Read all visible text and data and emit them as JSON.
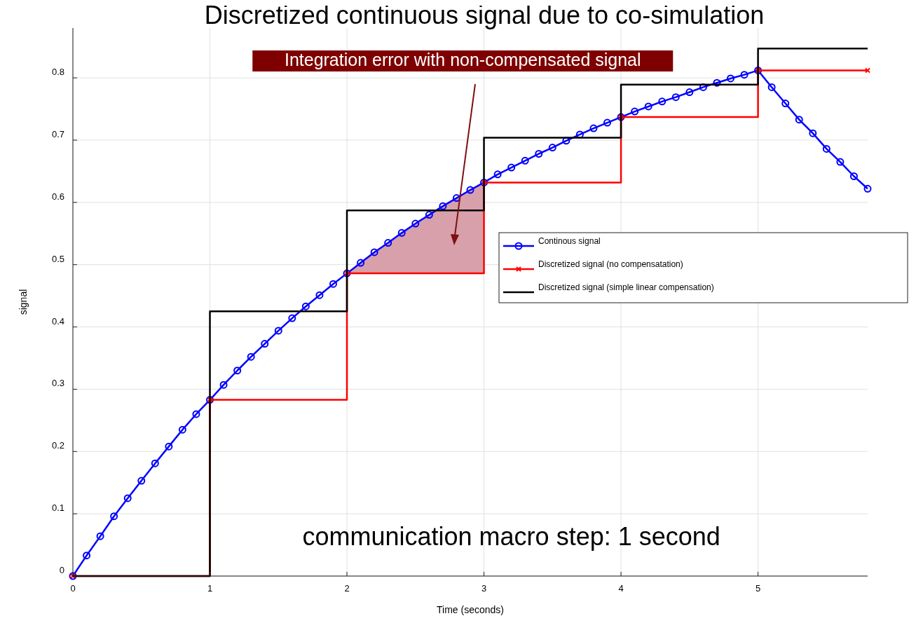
{
  "chart_data": {
    "type": "line",
    "title": "Discretized continuous signal due to co-simulation",
    "xlabel": "Time (seconds)",
    "ylabel": "signal",
    "xlim": [
      0,
      5.8
    ],
    "ylim": [
      0,
      0.88
    ],
    "xticks": [
      0,
      1,
      2,
      3,
      4,
      5
    ],
    "yticks": [
      0,
      0.1,
      0.2,
      0.3,
      0.4,
      0.5,
      0.6,
      0.7,
      0.8
    ],
    "grid": true,
    "legend": "right",
    "series": [
      {
        "type": "area",
        "color": "#d7a0aa",
        "x": [
          2,
          2.1,
          2.2,
          2.3,
          2.4,
          2.5,
          2.6,
          2.7,
          2.8,
          2.9,
          3
        ],
        "values": [
          0.486,
          0.503,
          0.52,
          0.535,
          0.551,
          0.566,
          0.58,
          0.594,
          0.607,
          0.62,
          0.632
        ]
      },
      {
        "name": "Continous signal",
        "color": "#0000ff",
        "marker": "circle",
        "x": [
          0,
          0.1,
          0.2,
          0.3,
          0.4,
          0.5,
          0.6,
          0.7,
          0.8,
          0.9,
          1,
          1.1,
          1.2,
          1.3,
          1.4,
          1.5,
          1.6,
          1.7,
          1.8,
          1.9,
          2,
          2.1,
          2.2,
          2.3,
          2.4,
          2.5,
          2.6,
          2.7,
          2.8,
          2.9,
          3,
          3.1,
          3.2,
          3.3,
          3.4,
          3.5,
          3.6,
          3.7,
          3.8,
          3.9,
          4,
          4.1,
          4.2,
          4.3,
          4.4,
          4.5,
          4.6,
          4.7,
          4.8,
          4.9,
          5,
          5.1,
          5.2,
          5.3,
          5.4,
          5.5,
          5.6,
          5.7,
          5.8
        ],
        "values": [
          0,
          0.033,
          0.064,
          0.096,
          0.125,
          0.153,
          0.181,
          0.208,
          0.235,
          0.26,
          0.283,
          0.307,
          0.33,
          0.352,
          0.373,
          0.394,
          0.414,
          0.433,
          0.451,
          0.469,
          0.486,
          0.503,
          0.52,
          0.535,
          0.551,
          0.566,
          0.58,
          0.594,
          0.607,
          0.62,
          0.632,
          0.645,
          0.656,
          0.667,
          0.678,
          0.688,
          0.699,
          0.709,
          0.719,
          0.728,
          0.737,
          0.746,
          0.754,
          0.762,
          0.769,
          0.777,
          0.785,
          0.792,
          0.799,
          0.805,
          0.812,
          0.785,
          0.759,
          0.733,
          0.711,
          0.686,
          0.665,
          0.642,
          0.622
        ]
      },
      {
        "type": "step",
        "name": "Discretized signal (no compensatation)",
        "color": "#ff0000",
        "marker": "cross",
        "x": [
          0,
          1,
          2,
          3,
          4,
          5,
          5.8
        ],
        "values": [
          0,
          0.283,
          0.486,
          0.632,
          0.737,
          0.812,
          0.812
        ]
      },
      {
        "type": "step",
        "name": "Discretized signal (simple linear compensation)",
        "color": "#000000",
        "marker": "none",
        "x": [
          0,
          1,
          2,
          3,
          4,
          5,
          5.8
        ],
        "values": [
          0,
          0.425,
          0.587,
          0.704,
          0.789,
          0.847,
          0.847
        ]
      }
    ],
    "annotations": [
      "Integration error with non-compensated signal",
      "communication macro step: 1 second"
    ]
  }
}
